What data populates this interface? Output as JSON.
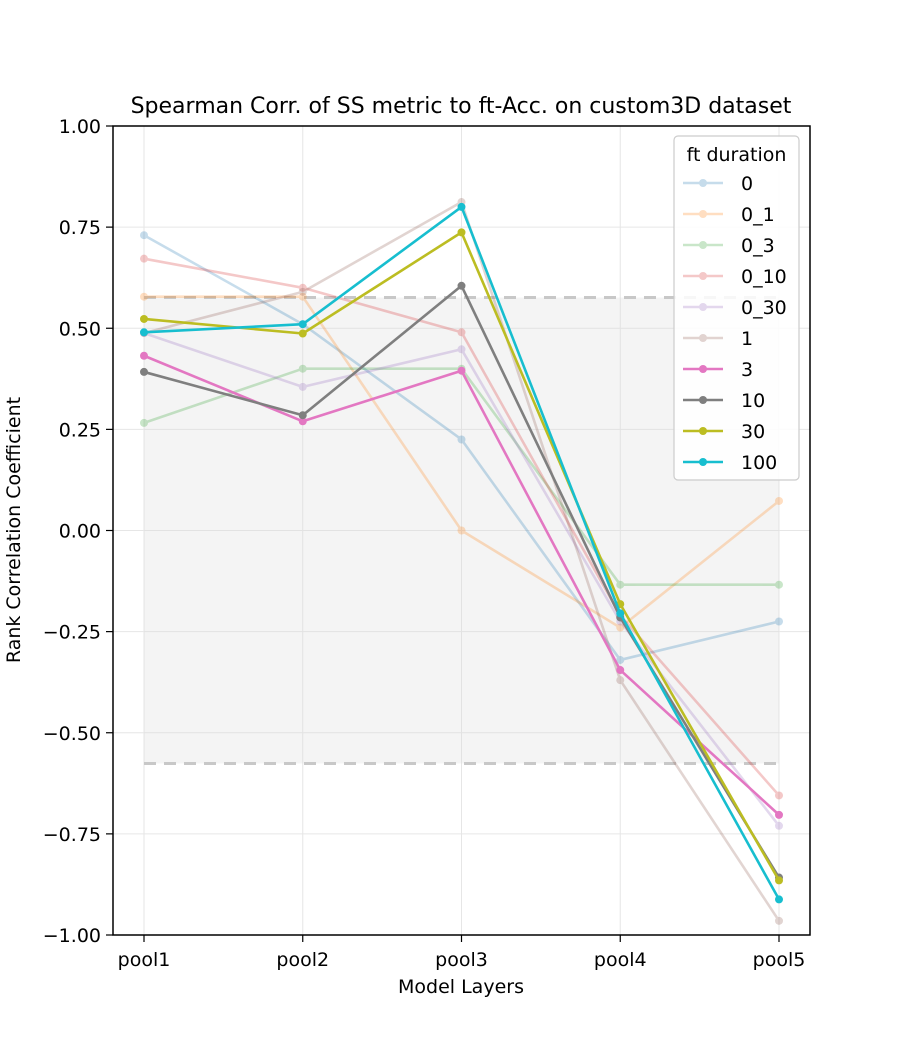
{
  "chart_data": {
    "type": "line",
    "title": "Spearman Corr. of SS metric to ft-Acc. on custom3D dataset",
    "xlabel": "Model Layers",
    "ylabel": "Rank Correlation Coefficient",
    "categories": [
      "pool1",
      "pool2",
      "pool3",
      "pool4",
      "pool5"
    ],
    "ylim": [
      -1.0,
      1.0
    ],
    "yticks": [
      "1.00",
      "0.75",
      "0.50",
      "0.25",
      "0.00",
      "−0.25",
      "−0.50",
      "−0.75",
      "−1.00"
    ],
    "ytick_values": [
      1.0,
      0.75,
      0.5,
      0.25,
      0.0,
      -0.25,
      -0.5,
      -0.75,
      -1.0
    ],
    "grid": true,
    "significance_band": [
      -0.576,
      0.576
    ],
    "legend": {
      "title": "ft duration",
      "position": "top-right"
    },
    "series": [
      {
        "name": "0",
        "color": "#1f77b4",
        "alpha": 0.25,
        "values": [
          0.73,
          0.51,
          0.225,
          -0.32,
          -0.225
        ]
      },
      {
        "name": "0_1",
        "color": "#ff7f0e",
        "alpha": 0.25,
        "values": [
          0.578,
          0.578,
          0.0,
          -0.24,
          0.073
        ]
      },
      {
        "name": "0_3",
        "color": "#2ca02c",
        "alpha": 0.25,
        "values": [
          0.266,
          0.4,
          0.4,
          -0.134,
          -0.134
        ]
      },
      {
        "name": "0_10",
        "color": "#d62728",
        "alpha": 0.25,
        "values": [
          0.672,
          0.6,
          0.49,
          -0.21,
          -0.655
        ]
      },
      {
        "name": "0_30",
        "color": "#9467bd",
        "alpha": 0.25,
        "values": [
          0.488,
          0.355,
          0.448,
          -0.225,
          -0.73
        ]
      },
      {
        "name": "1",
        "color": "#8c564b",
        "alpha": 0.25,
        "values": [
          0.488,
          0.59,
          0.812,
          -0.37,
          -0.965
        ]
      },
      {
        "name": "3",
        "color": "#e377c2",
        "alpha": 1.0,
        "values": [
          0.432,
          0.27,
          0.395,
          -0.345,
          -0.703
        ]
      },
      {
        "name": "10",
        "color": "#7f7f7f",
        "alpha": 1.0,
        "values": [
          0.392,
          0.285,
          0.605,
          -0.215,
          -0.858
        ]
      },
      {
        "name": "30",
        "color": "#bcbd22",
        "alpha": 1.0,
        "values": [
          0.523,
          0.487,
          0.737,
          -0.182,
          -0.865
        ]
      },
      {
        "name": "100",
        "color": "#17becf",
        "alpha": 1.0,
        "values": [
          0.49,
          0.51,
          0.8,
          -0.205,
          -0.912
        ]
      }
    ]
  }
}
